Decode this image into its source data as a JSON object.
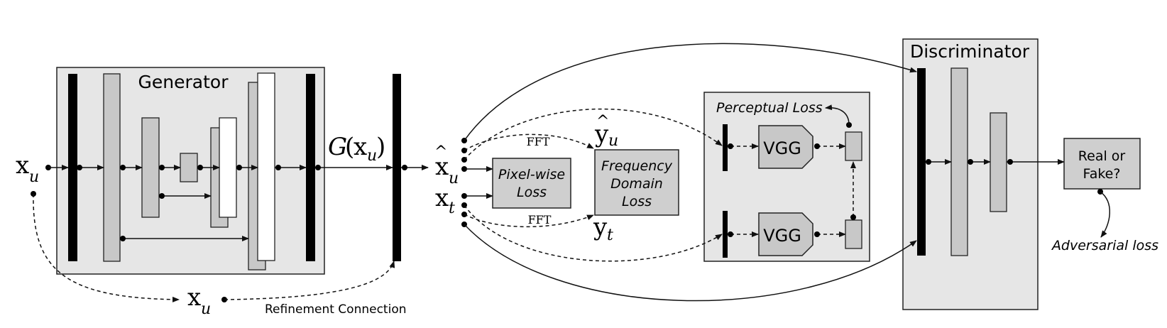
{
  "generator": {
    "title": "Generator"
  },
  "discriminator": {
    "title": "Discriminator",
    "output": [
      "Real or",
      "Fake?"
    ]
  },
  "perceptual": {
    "title": "Perceptual Loss",
    "vgg_label": "VGG"
  },
  "pixel_loss": {
    "line1": "Pixel-wise",
    "line2": "Loss"
  },
  "frequency_loss": {
    "line1": "Frequency",
    "line2": "Domain",
    "line3": "Loss"
  },
  "fft_label": "FFT",
  "adversarial_label": "Adversarial loss",
  "refinement_label": "Refinement Connection",
  "symbols": {
    "x": "x",
    "u": "u",
    "t": "t",
    "y": "y",
    "G": "G",
    "open_paren": "(",
    "close_paren": ")",
    "hat": "^"
  }
}
